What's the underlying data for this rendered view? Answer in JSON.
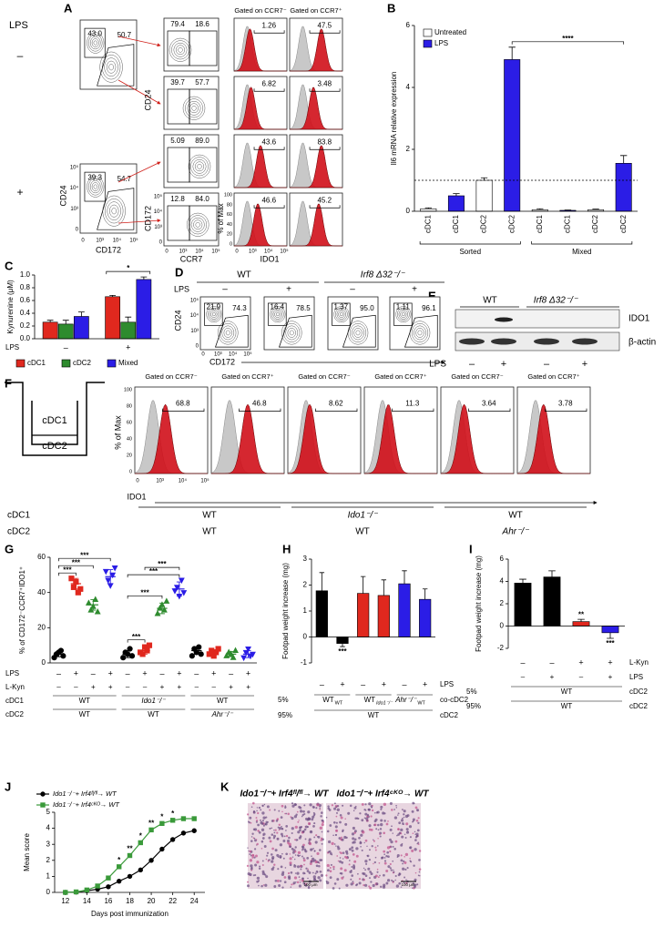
{
  "panel_labels": [
    "A",
    "B",
    "C",
    "D",
    "E",
    "F",
    "G",
    "H",
    "I",
    "J",
    "K"
  ],
  "flow_ticks": {
    "log": [
      "0",
      "10³",
      "10⁴",
      "10⁵"
    ],
    "pct": [
      "100",
      "80",
      "60",
      "40",
      "20",
      "0"
    ]
  },
  "panel_a": {
    "lps": "LPS",
    "conditions": [
      "–",
      "+"
    ],
    "left_gates": [
      [
        "43.0",
        "50.7"
      ],
      [
        "39.3",
        "54.7"
      ]
    ],
    "left_y": "CD24",
    "left_x": "CD172",
    "mid_gates": [
      [
        "79.4",
        "18.6"
      ],
      [
        "39.7",
        "57.7"
      ],
      [
        "5.09",
        "89.0"
      ],
      [
        "12.8",
        "84.0"
      ]
    ],
    "mid_y": [
      "CD24",
      "CD172"
    ],
    "mid_x": "CCR7",
    "hist_headers": [
      "Gated on CCR7⁻",
      "Gated on CCR7⁺"
    ],
    "hist_values": [
      [
        "1.26",
        "47.5"
      ],
      [
        "6.82",
        "3.48"
      ],
      [
        "43.6",
        "83.8"
      ],
      [
        "46.6",
        "45.2"
      ]
    ],
    "hist_y": "% of Max",
    "hist_x": "IDO1"
  },
  "panel_d": {
    "genotypes": [
      "WT",
      "Irf8 Δ32⁻/⁻"
    ],
    "lps": "LPS",
    "conditions": [
      "–",
      "+",
      "–",
      "+"
    ],
    "gates": [
      [
        "21.9",
        "74.3"
      ],
      [
        "16.4",
        "78.5"
      ],
      [
        "1.37",
        "95.0"
      ],
      [
        "1.11",
        "96.1"
      ]
    ],
    "y": "CD24",
    "x": "CD172"
  },
  "panel_e": {
    "genotypes": [
      "WT",
      "Irf8 Δ32⁻/⁻"
    ],
    "bands": [
      "IDO1",
      "β-actin"
    ],
    "lps": "LPS",
    "conditions": [
      "–",
      "+",
      "–",
      "+"
    ]
  },
  "panel_f": {
    "compartments": [
      "cDC1",
      "cDC2"
    ],
    "hist_headers": [
      "Gated on CCR7⁻",
      "Gated on CCR7⁺",
      "Gated on CCR7⁻",
      "Gated on CCR7⁺",
      "Gated on CCR7⁻",
      "Gated on CCR7⁺"
    ],
    "hist_values": [
      "68.8",
      "46.8",
      "8.62",
      "11.3",
      "3.64",
      "3.78"
    ],
    "hist_y": "% of Max",
    "hist_x": "IDO1",
    "rows": [
      {
        "label": "cDC1",
        "cells": [
          "WT",
          "Ido1⁻/⁻",
          "WT"
        ]
      },
      {
        "label": "cDC2",
        "cells": [
          "WT",
          "WT",
          "Ahr⁻/⁻"
        ]
      }
    ]
  },
  "panel_k": {
    "titles": [
      "Ido1⁻/⁻+ Irf4ᶠˡ/ᶠˡ→ WT",
      "Ido1⁻/⁻+ Irf4ᶜᴷᴼ→ WT"
    ],
    "scale_bar": "100 μm"
  },
  "chart_data": [
    {
      "type": "bar",
      "y_label": "Il6 mRNA relative expression",
      "ylim": [
        0,
        6
      ],
      "yticks": [
        0,
        2,
        4,
        6
      ],
      "categories": [
        "cDC1",
        "cDC1",
        "cDC2",
        "cDC2",
        "cDC1",
        "cDC1",
        "cDC2",
        "cDC2"
      ],
      "series": [
        {
          "name": "Untreated",
          "color": "#ffffff",
          "values": [
            0.08,
            null,
            1.0,
            null,
            0.05,
            null,
            0.05,
            null
          ],
          "errors": [
            0.03,
            null,
            0.08,
            null,
            0.03,
            null,
            0.02,
            null
          ]
        },
        {
          "name": "LPS",
          "color": "#2b1de6",
          "values": [
            null,
            0.5,
            null,
            4.9,
            null,
            0.03,
            null,
            1.55
          ],
          "errors": [
            null,
            0.07,
            null,
            0.4,
            null,
            0.01,
            null,
            0.25
          ]
        }
      ],
      "reference_line": 1,
      "groups": [
        {
          "label": "Sorted",
          "from": 0,
          "to": 3
        },
        {
          "label": "Mixed",
          "from": 4,
          "to": 7
        }
      ],
      "annotations": [
        {
          "text": "****",
          "from": 3,
          "to": 7
        }
      ],
      "legend": "upper left"
    },
    {
      "type": "bar",
      "y_label": "Kynurenine (μM)",
      "ylim": [
        0,
        1
      ],
      "yticks": [
        {
          "value": 0,
          "label": "0.0"
        },
        0.2,
        0.4,
        0.6,
        0.8,
        {
          "value": 1,
          "label": "1.0"
        }
      ],
      "categories": [
        "–",
        "+"
      ],
      "categories_label": "LPS",
      "series": [
        {
          "name": "cDC1",
          "color": "#e0281e",
          "values": [
            0.26,
            0.66
          ],
          "errors": [
            0.03,
            0.02
          ]
        },
        {
          "name": "cDC2",
          "color": "#2e8b2e",
          "values": [
            0.23,
            0.26
          ],
          "errors": [
            0.06,
            0.08
          ]
        },
        {
          "name": "Mixed",
          "color": "#2b1de6",
          "values": [
            0.35,
            0.93
          ],
          "errors": [
            0.07,
            0.04
          ]
        }
      ],
      "annotations": [
        {
          "text": "*",
          "from": 1,
          "to": 1
        }
      ],
      "legend": "bottom"
    },
    {
      "type": "strip",
      "y_label": "% of CD172⁻CCR7⁺IDO1⁺",
      "ylim": [
        0,
        60
      ],
      "yticks": [
        0,
        20,
        40,
        60
      ],
      "categories": [
        "–",
        "+",
        "–",
        "+",
        "–",
        "+",
        "–",
        "+",
        "–",
        "+",
        "–",
        "+"
      ],
      "categories_label": "LPS",
      "colors": [
        "#000000",
        "#e0281e",
        "#2e8b2e",
        "#2b1de6"
      ],
      "markers": [
        "circle",
        "square",
        "triangle",
        "triangle-down"
      ],
      "points": [
        [
          3,
          5,
          6,
          7,
          4
        ],
        [
          48,
          43,
          46,
          40,
          42
        ],
        [
          34,
          30,
          32,
          36,
          29
        ],
        [
          52,
          47,
          44,
          50,
          54
        ],
        [
          3,
          6,
          5,
          8,
          4
        ],
        [
          6,
          5,
          9,
          7,
          10
        ],
        [
          28,
          31,
          33,
          30,
          35
        ],
        [
          41,
          43,
          38,
          47,
          40
        ],
        [
          4,
          8,
          6,
          9,
          5
        ],
        [
          5,
          7,
          4,
          6,
          8
        ],
        [
          4,
          6,
          5,
          3,
          7
        ],
        [
          3,
          6,
          8,
          4,
          5
        ]
      ],
      "means": [
        5,
        45,
        33,
        49,
        5,
        7,
        31,
        42,
        7,
        6,
        5,
        5
      ],
      "sds": [
        1.5,
        3,
        3,
        4,
        2,
        2,
        3,
        4,
        2,
        1.5,
        1.5,
        2
      ],
      "rows": [
        {
          "label": "L-Kyn",
          "cells": [
            "–",
            "–",
            "+",
            "+",
            "–",
            "–",
            "+",
            "+",
            "–",
            "–",
            "+",
            "+"
          ]
        },
        {
          "label": "cDC1",
          "cells": [
            "WT",
            "Ido1⁻/⁻",
            "WT"
          ]
        },
        {
          "label": "cDC2",
          "cells": [
            "WT",
            "WT",
            "Ahr⁻/⁻"
          ]
        }
      ],
      "annotations": [
        {
          "text": "***",
          "from": 0,
          "to": 1
        },
        {
          "text": "***",
          "from": 0,
          "to": 2
        },
        {
          "text": "***",
          "from": 0,
          "to": 3
        },
        {
          "text": "***",
          "from": 4,
          "to": 5
        },
        {
          "text": "***",
          "from": 4,
          "to": 6
        },
        {
          "text": "***",
          "from": 4,
          "to": 7
        },
        {
          "text": "***",
          "from": 5,
          "to": 7
        }
      ]
    },
    {
      "type": "bar",
      "y_label": "Footpad weight increase (mg)",
      "ylim": [
        -1,
        3
      ],
      "yticks": [
        -1,
        0,
        1,
        2,
        3
      ],
      "categories": [
        "–",
        "+",
        "–",
        "+",
        "–",
        "+"
      ],
      "categories_label": "LPS",
      "series": [
        {
          "color": "#000000",
          "values": [
            1.78,
            -0.25,
            null,
            null,
            null,
            null
          ],
          "errors": [
            0.7,
            0.12,
            null,
            null,
            null,
            null
          ]
        },
        {
          "color": "#e0281e",
          "values": [
            null,
            null,
            1.68,
            1.6,
            null,
            null
          ],
          "errors": [
            null,
            null,
            0.65,
            0.6,
            null,
            null
          ]
        },
        {
          "color": "#2b1de6",
          "values": [
            null,
            null,
            null,
            null,
            2.05,
            1.45
          ],
          "errors": [
            null,
            null,
            null,
            null,
            0.5,
            0.4
          ]
        }
      ],
      "annotations": [
        {
          "text": "***",
          "at": 1
        }
      ],
      "rows": [
        {
          "prefix": "5%",
          "label": "co-cDC2",
          "cells": [
            {
              "main": "WT",
              "sub": "WT"
            },
            {
              "main": "WT",
              "sub": "Ido1⁻/⁻"
            },
            {
              "main": "Ahr⁻/⁻",
              "sub": "WT"
            }
          ]
        },
        {
          "prefix": "95%",
          "label": "cDC2",
          "cells": [
            "WT"
          ]
        }
      ]
    },
    {
      "type": "bar",
      "y_label": "Footpad weight increase (mg)",
      "ylim": [
        -2,
        6
      ],
      "yticks": [
        -2,
        0,
        2,
        4,
        6
      ],
      "categories": [
        "–",
        "–",
        "+",
        "+"
      ],
      "categories_label": "L-Kyn",
      "series": [
        {
          "color": "#000000",
          "values": [
            3.85,
            4.4,
            null,
            null
          ],
          "errors": [
            0.35,
            0.55,
            null,
            null
          ]
        },
        {
          "color": "#e0281e",
          "values": [
            null,
            null,
            0.4,
            null
          ],
          "errors": [
            null,
            null,
            0.2,
            null
          ]
        },
        {
          "color": "#2b1de6",
          "values": [
            null,
            null,
            null,
            -0.6
          ],
          "errors": [
            null,
            null,
            null,
            0.5
          ]
        }
      ],
      "annotations": [
        {
          "text": "**",
          "at": 2
        },
        {
          "text": "***",
          "at": 3
        }
      ],
      "rows": [
        {
          "label": "LPS",
          "cells": [
            "–",
            "+",
            "–",
            "+"
          ]
        },
        {
          "prefix": "5%",
          "label": "cDC2",
          "cells": [
            "WT"
          ]
        },
        {
          "prefix": "95%",
          "label": "cDC2",
          "cells": [
            "WT"
          ]
        }
      ]
    },
    {
      "type": "line",
      "x_label": "Days post immunization",
      "y_label": "Mean score",
      "xlim": [
        11,
        25
      ],
      "xticks": [
        12,
        14,
        16,
        18,
        20,
        22,
        24
      ],
      "ylim": [
        0,
        5
      ],
      "yticks": [
        0,
        1,
        2,
        3,
        4,
        5
      ],
      "x": [
        12,
        13,
        14,
        15,
        16,
        17,
        18,
        19,
        20,
        21,
        22,
        23,
        24
      ],
      "series": [
        {
          "name": "Ido1⁻/⁻+ Irf4ᶠˡ/ᶠˡ→ WT",
          "color": "#000000",
          "marker": "circle",
          "values": [
            0,
            0.02,
            0.1,
            0.2,
            0.35,
            0.7,
            1.0,
            1.4,
            2.0,
            2.7,
            3.3,
            3.7,
            3.85
          ]
        },
        {
          "name": "Ido1⁻/⁻+ Irf4ᶜᴷᴼ→ WT",
          "color": "#3a9a3a",
          "marker": "square",
          "values": [
            0,
            0.03,
            0.15,
            0.4,
            0.9,
            1.6,
            2.3,
            3.1,
            3.9,
            4.3,
            4.5,
            4.6,
            4.6
          ]
        }
      ],
      "annotations": [
        {
          "text": "*",
          "x": 17
        },
        {
          "text": "**",
          "x": 18
        },
        {
          "text": "*",
          "x": 19
        },
        {
          "text": "**",
          "x": 20
        },
        {
          "text": "*",
          "x": 21
        },
        {
          "text": "*",
          "x": 22
        }
      ],
      "legend": "upper left"
    }
  ]
}
